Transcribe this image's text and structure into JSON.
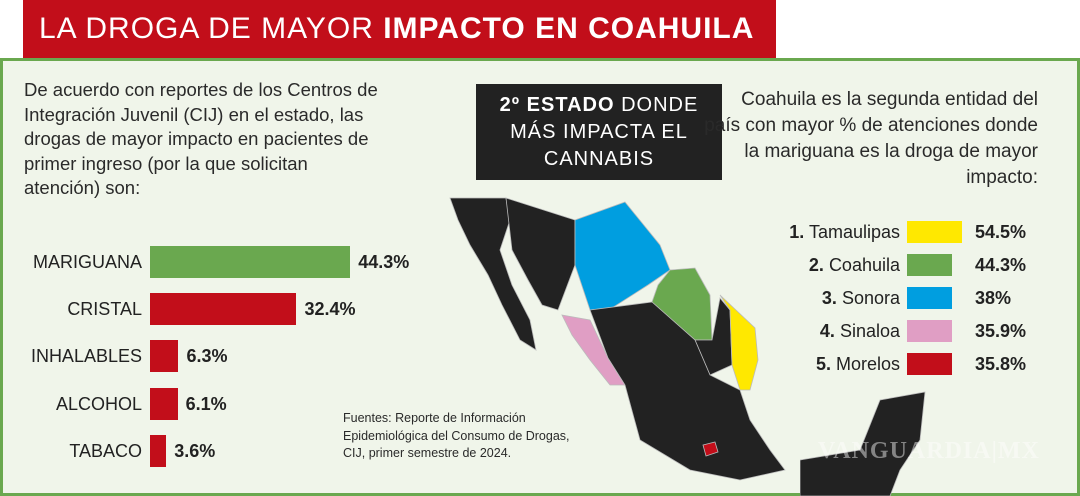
{
  "title": {
    "light": "LA DROGA DE MAYOR ",
    "bold": "IMPACTO EN COAHUILA"
  },
  "intro": "De acuerdo con reportes de los Centros de Integración Juvenil (CIJ) en el estado, las drogas de mayor impacto en pacientes de primer ingreso (por la que solicitan atención) son:",
  "chart_data": {
    "type": "bar",
    "orientation": "horizontal",
    "categories": [
      "MARIGUANA",
      "CRISTAL",
      "INHALABLES",
      "ALCOHOL",
      "TABACO"
    ],
    "values": [
      44.3,
      32.4,
      6.3,
      6.1,
      3.6
    ],
    "value_labels": [
      "44.3%",
      "32.4%",
      "6.3%",
      "6.1%",
      "3.6%"
    ],
    "colors": [
      "#6aa84f",
      "#c20e1a",
      "#c20e1a",
      "#c20e1a",
      "#c20e1a"
    ],
    "unit": "%"
  },
  "callout": {
    "bold": "2º ESTADO",
    "rest1": " DONDE",
    "line2": "MÁS IMPACTA EL",
    "line3": "CANNABIS"
  },
  "ranking": {
    "intro": "Coahuila es la segunda entidad del país con mayor % de atenciones donde la mariguana es la droga de mayor impacto:",
    "items": [
      {
        "rank": "1.",
        "state": "Tamaulipas",
        "value": "54.5%",
        "color": "#ffe800"
      },
      {
        "rank": "2.",
        "state": "Coahuila",
        "value": "44.3%",
        "color": "#6aa84f"
      },
      {
        "rank": "3.",
        "state": "Sonora",
        "value": "38%",
        "color": "#009ee0"
      },
      {
        "rank": "4.",
        "state": "Sinaloa",
        "value": "35.9%",
        "color": "#e09ec4"
      },
      {
        "rank": "5.",
        "state": "Morelos",
        "value": "35.8%",
        "color": "#c20e1a"
      }
    ]
  },
  "sources": [
    "Fuentes: Reporte de Información",
    "Epidemiológica del Consumo de Drogas,",
    "CIJ, primer semestre de 2024."
  ],
  "watermark": "VANGUARDIA MX"
}
